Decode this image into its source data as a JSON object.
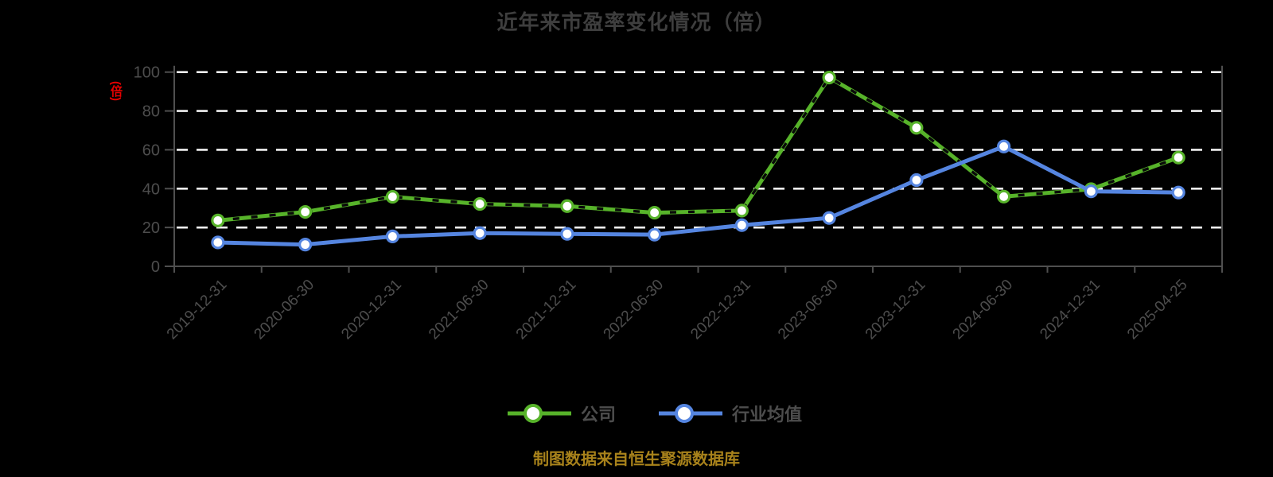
{
  "chart": {
    "title": "近年来市盈率变化情况（倍）",
    "y_axis_unit": "(倍)",
    "source_note": "制图数据来自恒生聚源数据库",
    "legend_items": [
      {
        "label": "公司",
        "color": "#57b32a"
      },
      {
        "label": "行业均值",
        "color": "#5585e0"
      }
    ],
    "colors": {
      "background": "#000000",
      "title_text": "#3e3e3e",
      "axis_text": "#4d4d4d",
      "axis_line": "#4f4f4f",
      "gridline": "#f0f0f0",
      "unit_label": "#e60000",
      "source_text": "#a8821b",
      "marker_fill": "#ffffff",
      "dash_overlay": "#0a0a0a"
    }
  },
  "chart_data": {
    "type": "line",
    "title": "近年来市盈率变化情况（倍）",
    "categories": [
      "2019-12-31",
      "2020-06-30",
      "2020-12-31",
      "2021-06-30",
      "2021-12-31",
      "2022-06-30",
      "2022-12-31",
      "2023-06-30",
      "2023-12-31",
      "2024-06-30",
      "2024-12-31",
      "2025-04-25"
    ],
    "series": [
      {
        "name": "公司",
        "color": "#57b32a",
        "line_style": "solid-with-dark-dash-overlay",
        "values": [
          23.6,
          28,
          35.8,
          32.1,
          31,
          27.6,
          28.7,
          97.2,
          71.3,
          35.9,
          39.7,
          56
        ]
      },
      {
        "name": "行业均值",
        "color": "#5585e0",
        "line_style": "solid",
        "values": [
          12.3,
          11.2,
          15.4,
          17.1,
          16.7,
          16.3,
          21.2,
          24.9,
          44.4,
          61.7,
          38.6,
          38
        ]
      }
    ],
    "ylabel_unit": "(倍)",
    "ylim": [
      0,
      100
    ],
    "yticks": [
      0,
      20,
      40,
      60,
      80,
      100
    ],
    "x_tick_label_rotation_deg": 45,
    "grid": "horizontal-dashed-white",
    "legend_position": "bottom",
    "marker": "white-filled-circle"
  }
}
